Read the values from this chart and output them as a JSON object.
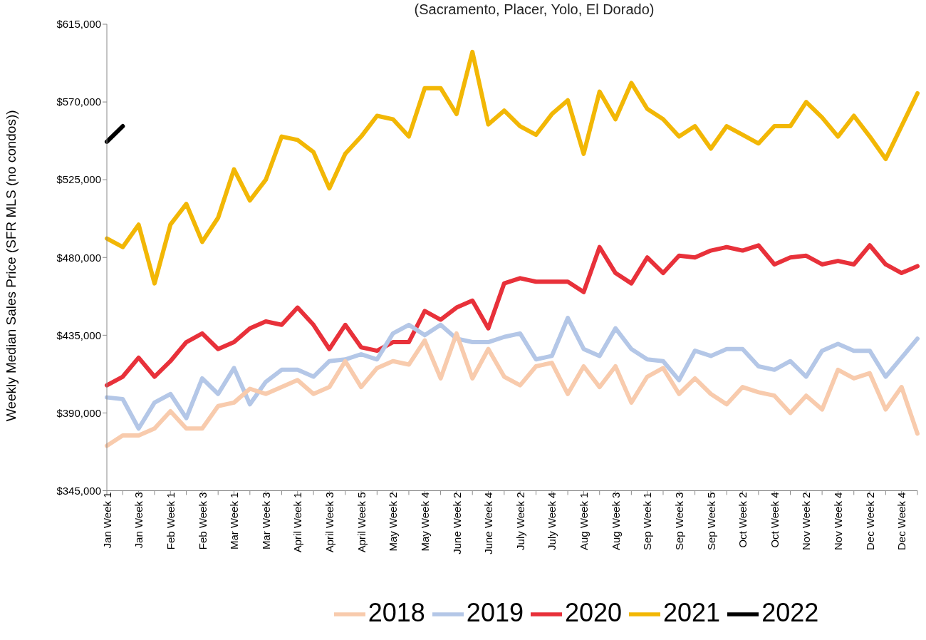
{
  "chart_data": {
    "type": "line",
    "subtitle": "(Sacramento, Placer, Yolo, El Dorado)",
    "ylabel": "Weekly Median Sales Price (SFR MLS (no condos))",
    "categories": [
      "Jan Week 1",
      null,
      "Jan Week 3",
      null,
      "Feb Week 1",
      null,
      "Feb Week 3",
      null,
      "Mar Week 1",
      null,
      "Mar Week 3",
      null,
      "April Week 1",
      null,
      "April Week 3",
      null,
      "April Week 5",
      null,
      "May Week 2",
      null,
      "May Week 4",
      null,
      "June Week 2",
      null,
      "June Week 4",
      null,
      "July Week 2",
      null,
      "July Week 4",
      null,
      "Aug Week 1",
      null,
      "Aug Week 3",
      null,
      "Sep Week 1",
      null,
      "Sep Week 3",
      null,
      "Sep Week 5",
      null,
      "Oct Week 2",
      null,
      "Oct Week 4",
      null,
      "Nov Week 2",
      null,
      "Nov Week 4",
      null,
      "Dec Week 2",
      null,
      "Dec Week 4",
      null
    ],
    "ylim": [
      345000,
      615000
    ],
    "yticks": [
      {
        "value": 345000,
        "label": "$345,000"
      },
      {
        "value": 390000,
        "label": "$390,000"
      },
      {
        "value": 435000,
        "label": "$435,000"
      },
      {
        "value": 480000,
        "label": "$480,000"
      },
      {
        "value": 525000,
        "label": "$525,000"
      },
      {
        "value": 570000,
        "label": "$570,000"
      },
      {
        "value": 615000,
        "label": "$615,000"
      }
    ],
    "legend": "bottom",
    "line_style": "solid",
    "series": [
      {
        "name": "2022",
        "color": "#000000",
        "values": [
          547000,
          556000,
          null,
          null,
          null,
          null,
          null,
          null,
          null,
          null,
          null,
          null,
          null,
          null,
          null,
          null,
          null,
          null,
          null,
          null,
          null,
          null,
          null,
          null,
          null,
          null,
          null,
          null,
          null,
          null,
          null,
          null,
          null,
          null,
          null,
          null,
          null,
          null,
          null,
          null,
          null,
          null,
          null,
          null,
          null,
          null,
          null,
          null,
          null,
          null,
          null,
          null
        ]
      },
      {
        "name": "2021",
        "color": "#f2b705",
        "values": [
          491000,
          486000,
          499000,
          465000,
          499000,
          511000,
          489000,
          503000,
          531000,
          513000,
          525000,
          550000,
          548000,
          541000,
          520000,
          540000,
          550000,
          562000,
          560000,
          550000,
          578000,
          578000,
          563000,
          599000,
          557000,
          565000,
          556000,
          551000,
          563000,
          571000,
          540000,
          576000,
          560000,
          581000,
          566000,
          560000,
          550000,
          556000,
          543000,
          556000,
          551000,
          546000,
          556000,
          556000,
          570000,
          561000,
          550000,
          562000,
          550000,
          537000,
          556000,
          575000
        ]
      },
      {
        "name": "2020",
        "color": "#e8313a",
        "values": [
          406000,
          411000,
          422000,
          411000,
          420000,
          431000,
          436000,
          427000,
          431000,
          439000,
          443000,
          441000,
          451000,
          441000,
          427000,
          441000,
          428000,
          426000,
          431000,
          431000,
          449000,
          444000,
          451000,
          455000,
          439000,
          465000,
          468000,
          466000,
          466000,
          466000,
          460000,
          486000,
          471000,
          465000,
          480000,
          471000,
          481000,
          480000,
          484000,
          486000,
          484000,
          487000,
          476000,
          480000,
          481000,
          476000,
          478000,
          476000,
          487000,
          476000,
          471000,
          475000
        ]
      },
      {
        "name": "2019",
        "color": "#b4c7e7",
        "values": [
          399000,
          398000,
          381000,
          396000,
          401000,
          387000,
          410000,
          401000,
          416000,
          395000,
          408000,
          415000,
          415000,
          411000,
          420000,
          421000,
          424000,
          421000,
          436000,
          441000,
          435000,
          441000,
          433000,
          431000,
          431000,
          434000,
          436000,
          421000,
          423000,
          445000,
          427000,
          423000,
          439000,
          427000,
          421000,
          420000,
          409000,
          426000,
          423000,
          427000,
          427000,
          417000,
          415000,
          420000,
          411000,
          426000,
          430000,
          426000,
          426000,
          411000,
          422000,
          433000
        ]
      },
      {
        "name": "2018",
        "color": "#f8cbad",
        "values": [
          371000,
          377000,
          377000,
          381000,
          391000,
          381000,
          381000,
          394000,
          396000,
          404000,
          401000,
          405000,
          409000,
          401000,
          405000,
          420000,
          405000,
          416000,
          420000,
          418000,
          432000,
          410000,
          436000,
          410000,
          427000,
          411000,
          406000,
          417000,
          419000,
          401000,
          417000,
          405000,
          417000,
          396000,
          411000,
          416000,
          401000,
          410000,
          401000,
          395000,
          405000,
          402000,
          400000,
          390000,
          400000,
          392000,
          415000,
          410000,
          413000,
          392000,
          405000,
          378000
        ]
      }
    ]
  }
}
